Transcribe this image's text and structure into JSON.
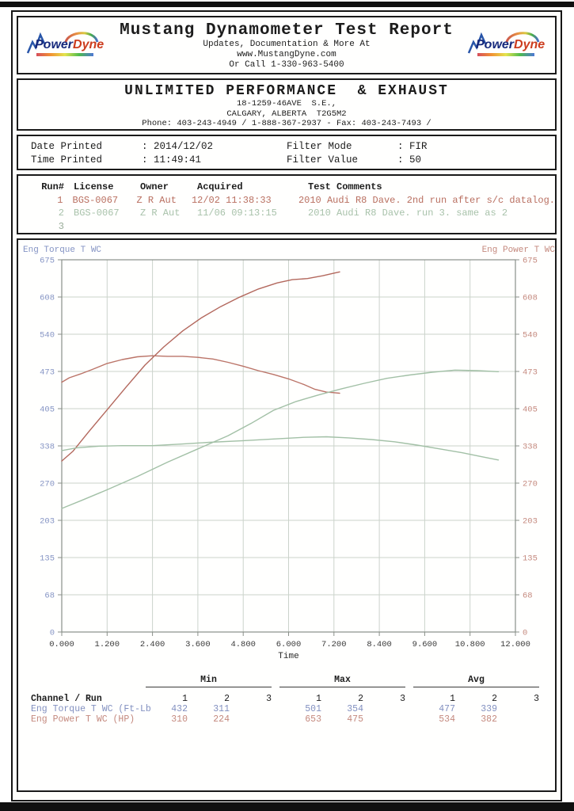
{
  "header": {
    "title": "Mustang Dynamometer Test Report",
    "subtitle1": "Updates, Documentation & More At",
    "subtitle2": "www.MustangDyne.com",
    "subtitle3": "Or Call 1-330-963-5400",
    "logo": {
      "part1": "Power",
      "part2": "Dyne"
    }
  },
  "business": {
    "name": "UNLIMITED PERFORMANCE  & EXHAUST",
    "address1": "18-1259-46AVE  S.E.,",
    "address2": "CALGARY, ALBERTA  T2G5M2",
    "phone": "Phone: 403-243-4949 / 1-888-367-2937 - Fax: 403-243-7493 /"
  },
  "print_info": {
    "date_label": "Date Printed",
    "date_value": ": 2014/12/02",
    "time_label": "Time Printed",
    "time_value": ": 11:49:41",
    "filter_mode_label": "Filter Mode",
    "filter_mode_value": ": FIR",
    "filter_value_label": "Filter Value",
    "filter_value_value": ": 50"
  },
  "runs": {
    "headers": {
      "run": "Run#",
      "license": "License",
      "owner": "Owner",
      "acquired": "Acquired",
      "comments": "Test Comments"
    },
    "rows": [
      {
        "run": "1",
        "license": "BGS-0067",
        "owner": "Z R Aut",
        "acquired": "12/02 11:38:33",
        "comments": "2010 Audi R8 Dave. 2nd run after s/c datalog.",
        "color": "#b96f60"
      },
      {
        "run": "2",
        "license": "BGS-0067",
        "owner": "Z R Aut",
        "acquired": "11/06 09:13:15",
        "comments": "2010 Audi R8 Dave. run 3. same as 2",
        "color": "#a8c2aa"
      },
      {
        "run": "3",
        "license": "",
        "owner": "",
        "acquired": "",
        "comments": "",
        "color": "#97ab97"
      }
    ]
  },
  "chart_data": {
    "type": "line",
    "title": "",
    "xlabel": "Time",
    "left_axis_label": "Eng Torque T WC",
    "right_axis_label": "Eng Power T WC",
    "left_axis_color": "#8594c4",
    "right_axis_color": "#c4897e",
    "grid": true,
    "grid_color": "#cbd3cb",
    "frame_color": "#898f89",
    "xlim": [
      0,
      12
    ],
    "ylim": [
      0,
      675
    ],
    "x_ticks": [
      "0.000",
      "1.200",
      "2.400",
      "3.600",
      "4.800",
      "6.000",
      "7.200",
      "8.400",
      "9.600",
      "10.800",
      "12.000"
    ],
    "y_ticks": [
      "675",
      "608",
      "540",
      "473",
      "405",
      "338",
      "270",
      "203",
      "135",
      "68",
      "0"
    ],
    "legend_position": "none",
    "series": [
      {
        "name": "Run 1 Eng Power T WC (HP)",
        "color": "#b3685d",
        "x": [
          0,
          0.3,
          0.7,
          1.2,
          1.7,
          2.2,
          2.7,
          3.2,
          3.7,
          4.2,
          4.7,
          5.2,
          5.7,
          6.1,
          6.5,
          6.9,
          7.15,
          7.35
        ],
        "y": [
          310,
          328,
          362,
          403,
          444,
          484,
          517,
          546,
          570,
          590,
          607,
          622,
          633,
          639,
          641,
          646,
          650,
          653
        ]
      },
      {
        "name": "Run 1 Eng Torque T WC (Ft-Lb)",
        "color": "#bb7468",
        "x": [
          0,
          0.2,
          0.5,
          0.8,
          1.2,
          1.6,
          2.0,
          2.4,
          2.8,
          3.2,
          3.6,
          4.0,
          4.4,
          4.8,
          5.2,
          5.6,
          6.0,
          6.4,
          6.7,
          7.0,
          7.2,
          7.35
        ],
        "y": [
          453,
          461,
          468,
          476,
          487,
          494,
          499,
          501,
          500,
          500,
          498,
          495,
          489,
          482,
          474,
          467,
          459,
          449,
          440,
          435,
          434,
          433
        ]
      },
      {
        "name": "Run 2 Eng Torque T WC (Ft-Lb)",
        "color": "#a2c0a6",
        "x": [
          0,
          0.4,
          1.0,
          1.6,
          2.4,
          3.2,
          3.9,
          4.8,
          5.6,
          6.4,
          7.0,
          7.6,
          8.2,
          8.8,
          9.4,
          10.0,
          10.6,
          11.1,
          11.55
        ],
        "y": [
          329,
          334,
          337,
          338,
          338,
          341,
          344,
          347,
          350,
          353,
          354,
          352,
          349,
          345,
          339,
          332,
          325,
          318,
          312
        ]
      },
      {
        "name": "Run 2 Eng Power T WC (HP)",
        "color": "#a2c0a6",
        "x": [
          0,
          0.5,
          1.2,
          2.0,
          2.8,
          3.6,
          4.4,
          5.0,
          5.6,
          6.2,
          6.8,
          7.4,
          8.0,
          8.6,
          9.2,
          9.8,
          10.4,
          11.0,
          11.55
        ],
        "y": [
          224,
          238,
          258,
          282,
          308,
          332,
          356,
          378,
          402,
          418,
          430,
          441,
          451,
          460,
          466,
          471,
          475,
          474,
          472
        ]
      }
    ]
  },
  "stats": {
    "group_headers": [
      "Min",
      "Max",
      "Avg"
    ],
    "run_headers": [
      "1",
      "2",
      "3"
    ],
    "channel_label": "Channel / Run",
    "rows": [
      {
        "label": "Eng Torque T WC (Ft-Lb",
        "color": "#8290c0",
        "min": [
          "432",
          "311",
          ""
        ],
        "max": [
          "501",
          "354",
          ""
        ],
        "avg": [
          "477",
          "339",
          ""
        ]
      },
      {
        "label": "Eng Power T WC (HP)",
        "color": "#c4897e",
        "min": [
          "310",
          "224",
          ""
        ],
        "max": [
          "653",
          "475",
          ""
        ],
        "avg": [
          "534",
          "382",
          ""
        ]
      }
    ]
  }
}
